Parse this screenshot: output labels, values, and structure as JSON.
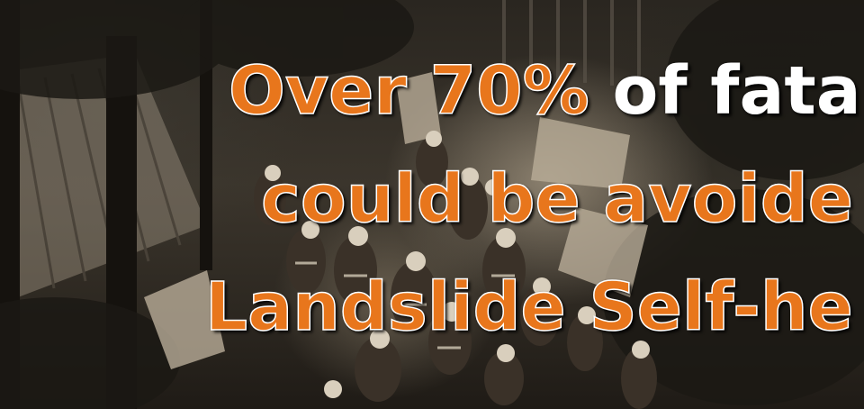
{
  "headline": {
    "line1_emphasis": "Over 70%",
    "line1_rest": " of fata",
    "line2": "could be avoide",
    "line3": "Landslide Self-he"
  },
  "colors": {
    "accent_orange": "#e8761c",
    "text_white": "#ffffff",
    "photo_tone": "#3b352c"
  },
  "background_image": "sepia-photo-of-rescue-workers-at-landslide-site"
}
